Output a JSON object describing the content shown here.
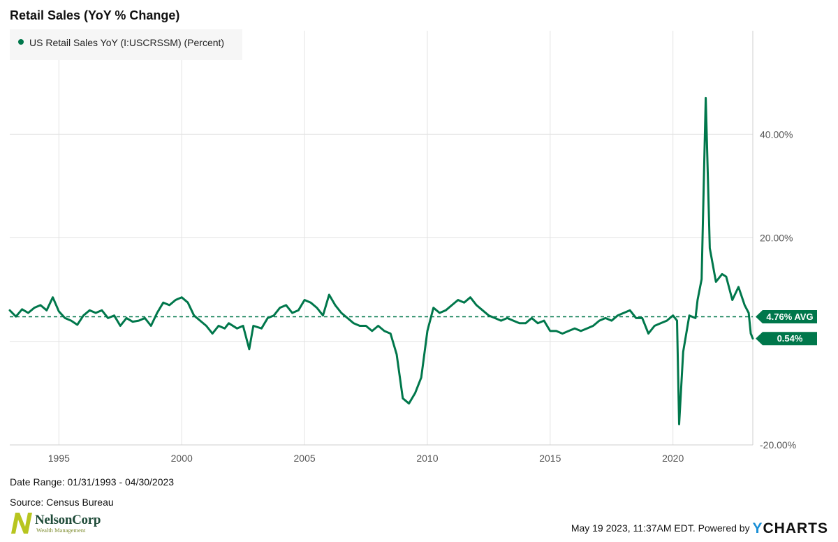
{
  "chart_data": {
    "type": "line",
    "title": "Retail Sales (YoY % Change)",
    "series": [
      {
        "name": "US Retail Sales YoY (I:USCRSSM) (Percent)",
        "color": "#00774b",
        "x": [
          "1993-01",
          "1993-04",
          "1993-07",
          "1993-10",
          "1994-01",
          "1994-04",
          "1994-07",
          "1994-10",
          "1995-01",
          "1995-04",
          "1995-07",
          "1995-10",
          "1996-01",
          "1996-04",
          "1996-07",
          "1996-10",
          "1997-01",
          "1997-04",
          "1997-07",
          "1997-10",
          "1998-01",
          "1998-04",
          "1998-07",
          "1998-10",
          "1999-01",
          "1999-04",
          "1999-07",
          "1999-10",
          "2000-01",
          "2000-04",
          "2000-07",
          "2000-10",
          "2001-01",
          "2001-04",
          "2001-07",
          "2001-10",
          "2001-12",
          "2002-04",
          "2002-07",
          "2002-10",
          "2002-12",
          "2003-04",
          "2003-07",
          "2003-10",
          "2004-01",
          "2004-04",
          "2004-07",
          "2004-10",
          "2005-01",
          "2005-04",
          "2005-07",
          "2005-10",
          "2006-01",
          "2006-04",
          "2006-07",
          "2006-10",
          "2007-01",
          "2007-04",
          "2007-07",
          "2007-10",
          "2008-01",
          "2008-04",
          "2008-07",
          "2008-10",
          "2009-01",
          "2009-04",
          "2009-07",
          "2009-10",
          "2010-01",
          "2010-04",
          "2010-07",
          "2010-10",
          "2011-01",
          "2011-04",
          "2011-07",
          "2011-10",
          "2012-01",
          "2012-04",
          "2012-07",
          "2012-10",
          "2013-01",
          "2013-04",
          "2013-07",
          "2013-10",
          "2014-01",
          "2014-04",
          "2014-07",
          "2014-10",
          "2015-01",
          "2015-04",
          "2015-07",
          "2015-10",
          "2016-01",
          "2016-04",
          "2016-07",
          "2016-10",
          "2017-01",
          "2017-04",
          "2017-07",
          "2017-10",
          "2018-01",
          "2018-04",
          "2018-07",
          "2018-10",
          "2019-01",
          "2019-04",
          "2019-07",
          "2019-10",
          "2020-01",
          "2020-03",
          "2020-04",
          "2020-06",
          "2020-09",
          "2020-12",
          "2021-01",
          "2021-03",
          "2021-04",
          "2021-05",
          "2021-07",
          "2021-10",
          "2022-01",
          "2022-03",
          "2022-06",
          "2022-09",
          "2022-12",
          "2023-02",
          "2023-03",
          "2023-04"
        ],
        "values": [
          6.0,
          4.8,
          6.2,
          5.5,
          6.5,
          7.0,
          6.0,
          8.5,
          5.8,
          4.5,
          4.0,
          3.2,
          5.0,
          6.0,
          5.5,
          6.0,
          4.5,
          5.0,
          3.0,
          4.5,
          3.8,
          4.0,
          4.5,
          3.0,
          5.5,
          7.5,
          7.0,
          8.0,
          8.5,
          7.5,
          5.0,
          4.0,
          3.0,
          1.5,
          3.0,
          2.5,
          3.5,
          2.5,
          3.0,
          -1.5,
          3.0,
          2.5,
          4.5,
          5.0,
          6.5,
          7.0,
          5.5,
          6.0,
          8.0,
          7.5,
          6.5,
          5.0,
          9.0,
          7.0,
          5.5,
          4.5,
          3.5,
          3.0,
          3.0,
          2.0,
          3.0,
          2.0,
          1.5,
          -2.5,
          -11.0,
          -12.0,
          -10.0,
          -7.0,
          2.0,
          6.5,
          5.5,
          6.0,
          7.0,
          8.0,
          7.5,
          8.5,
          7.0,
          6.0,
          5.0,
          4.5,
          4.0,
          4.5,
          4.0,
          3.5,
          3.5,
          4.5,
          3.5,
          4.0,
          2.0,
          2.0,
          1.5,
          2.0,
          2.5,
          2.0,
          2.5,
          3.0,
          4.0,
          4.5,
          4.0,
          5.0,
          5.5,
          6.0,
          4.5,
          4.5,
          1.5,
          3.0,
          3.5,
          4.0,
          5.0,
          4.0,
          -16.0,
          -2.0,
          5.0,
          4.5,
          8.0,
          12.0,
          30.0,
          47.0,
          18.0,
          11.5,
          13.0,
          12.5,
          8.0,
          10.5,
          7.0,
          5.5,
          1.5,
          0.54
        ],
        "latest_label": "0.54%"
      }
    ],
    "average": {
      "value": 4.76,
      "label": "4.76% AVG"
    },
    "x_ticks": [
      "1995",
      "2000",
      "2005",
      "2010",
      "2015",
      "2020"
    ],
    "y_ticks": [
      {
        "value": 40,
        "label": "40.00%"
      },
      {
        "value": 20,
        "label": "20.00%"
      },
      {
        "value": -20,
        "label": "-20.00%"
      }
    ],
    "ylim": [
      -20,
      60
    ],
    "xlim": [
      "1993-01",
      "2023-04"
    ],
    "grid": true,
    "legend_position": "top-left"
  },
  "legend": {
    "label": "US Retail Sales YoY (I:USCRSSM) (Percent)"
  },
  "footer": {
    "date_range": "Date Range: 01/31/1993 - 04/30/2023",
    "source": "Source: Census Bureau",
    "timestamp": "May 19 2023, 11:37AM EDT.",
    "powered_by": "Powered by",
    "ycharts_y": "Y",
    "ycharts_rest": "CHARTS"
  },
  "logo": {
    "name": "NelsonCorp",
    "subtitle": "Wealth Management"
  }
}
